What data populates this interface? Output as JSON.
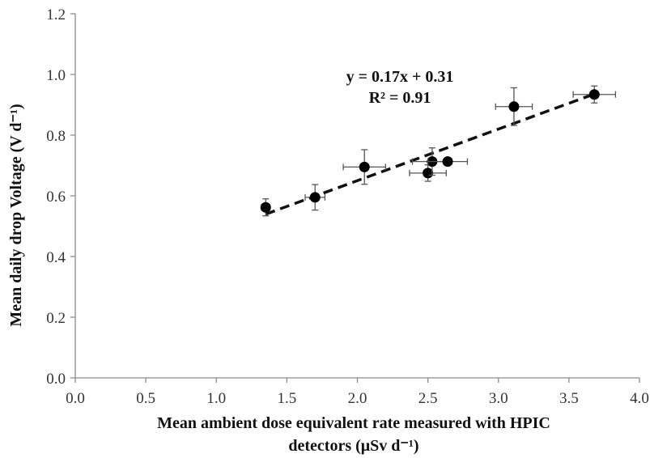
{
  "chart_data": {
    "type": "scatter",
    "title": "",
    "xlabel_line1": "Mean ambient dose equivalent rate measured with HPIC",
    "xlabel_line2": "detectors (μSv d⁻¹)",
    "ylabel": "Mean daily drop Voltage (V d⁻¹)",
    "xlim": [
      0.0,
      4.0
    ],
    "ylim": [
      0.0,
      1.2
    ],
    "x_ticks": [
      "0.0",
      "0.5",
      "1.0",
      "1.5",
      "2.0",
      "2.5",
      "3.0",
      "3.5",
      "4.0"
    ],
    "y_ticks": [
      "0.0",
      "0.2",
      "0.4",
      "0.6",
      "0.8",
      "1.0",
      "1.2"
    ],
    "grid": false,
    "series": [
      {
        "x": [
          1.35,
          1.7,
          2.05,
          2.5,
          2.53,
          2.64,
          3.11,
          3.68
        ],
        "y": [
          0.562,
          0.595,
          0.695,
          0.675,
          0.713,
          0.713,
          0.894,
          0.934
        ],
        "xerr": [
          0.03,
          0.07,
          0.15,
          0.13,
          0.14,
          0.14,
          0.13,
          0.15
        ],
        "yerr": [
          0.028,
          0.042,
          0.057,
          0.027,
          0.045,
          0.0,
          0.062,
          0.028
        ]
      }
    ],
    "trendline": {
      "slope": 0.17,
      "intercept": 0.31,
      "x_range": [
        1.35,
        3.68
      ]
    },
    "annotations": {
      "equation": "y = 0.17x + 0.31",
      "r_squared": "R² = 0.91"
    }
  }
}
